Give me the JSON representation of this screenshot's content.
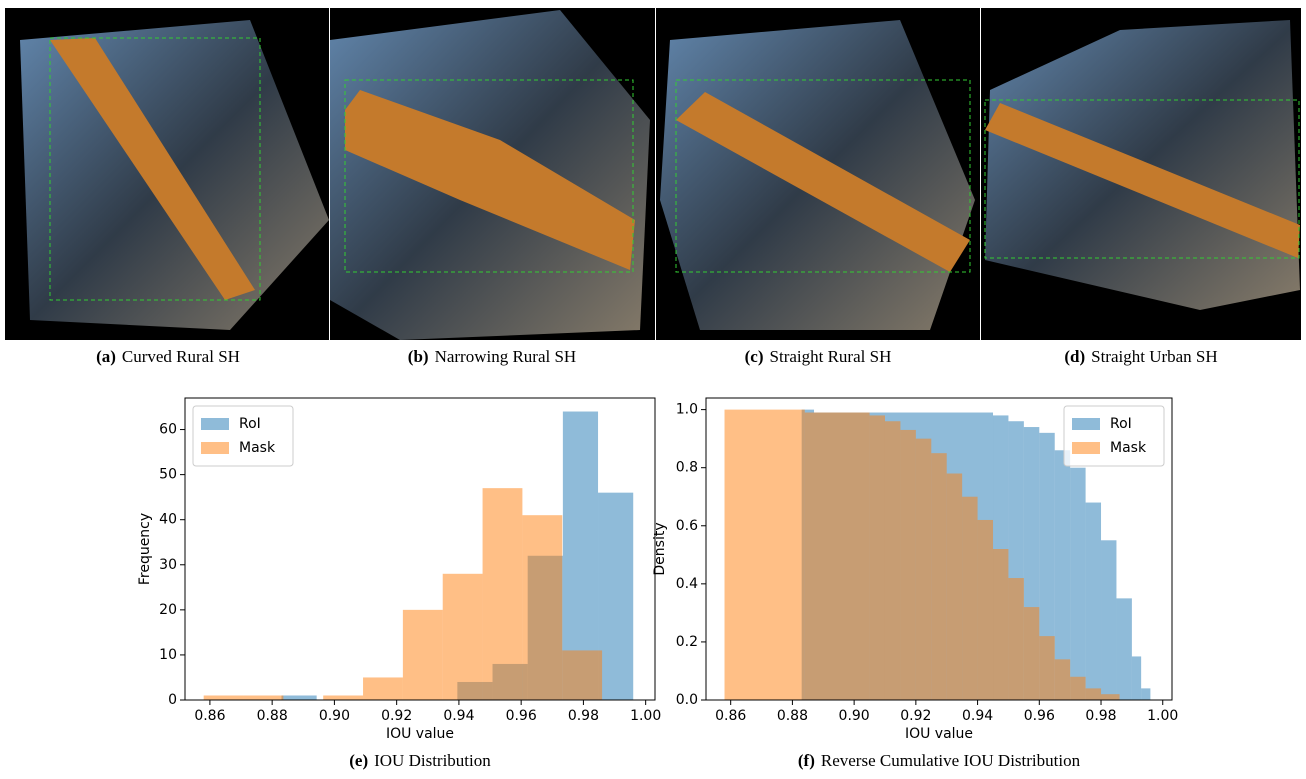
{
  "images": [
    {
      "label": "(a)",
      "caption": "Curved Rural SH"
    },
    {
      "label": "(b)",
      "caption": "Narrowing Rural SH"
    },
    {
      "label": "(c)",
      "caption": "Straight Rural SH"
    },
    {
      "label": "(d)",
      "caption": "Straight Urban SH"
    }
  ],
  "chart_data": [
    {
      "type": "histogram",
      "caption_label": "(e)",
      "caption": "IOU Distribution",
      "xlabel": "IOU value",
      "ylabel": "Frequency",
      "legend": "upper left",
      "alpha": 0.5,
      "xlim": [
        0.852,
        1.003
      ],
      "ylim": [
        0,
        67
      ],
      "xticks": [
        0.86,
        0.88,
        {
          "value": 0.9,
          "label": "0.90"
        },
        0.92,
        0.94,
        0.96,
        0.98,
        {
          "value": 1,
          "label": "1.00"
        }
      ],
      "yticks": [
        0,
        10,
        20,
        30,
        40,
        50,
        60
      ],
      "series": [
        {
          "name": "RoI",
          "color": "#1f77b4",
          "bins": [
            0.883,
            0.8943,
            0.9056,
            0.9169,
            0.9282,
            0.9395,
            0.9508,
            0.9621,
            0.9734,
            0.9847,
            0.996
          ],
          "values": [
            1,
            0,
            0,
            0,
            0,
            4,
            8,
            32,
            64,
            46
          ]
        },
        {
          "name": "Mask",
          "color": "#ff7f0e",
          "bins": [
            0.858,
            0.8708,
            0.8836,
            0.8964,
            0.9092,
            0.922,
            0.9348,
            0.9476,
            0.9604,
            0.9732,
            0.986
          ],
          "values": [
            1,
            1,
            0,
            1,
            5,
            20,
            28,
            47,
            41,
            11
          ]
        }
      ]
    },
    {
      "type": "histogram",
      "caption_label": "(f)",
      "caption": "Reverse Cumulative IOU Distribution",
      "xlabel": "IOU value",
      "ylabel": "Density",
      "legend": "upper right",
      "alpha": 0.5,
      "xlim": [
        0.852,
        1.003
      ],
      "ylim": [
        0,
        1.04
      ],
      "xticks": [
        0.86,
        0.88,
        {
          "value": 0.9,
          "label": "0.90"
        },
        0.92,
        0.94,
        0.96,
        0.98,
        {
          "value": 1,
          "label": "1.00"
        }
      ],
      "yticks": [
        {
          "value": 0,
          "label": "0.0"
        },
        0.2,
        0.4,
        0.6,
        0.8,
        {
          "value": 1,
          "label": "1.0"
        }
      ],
      "series": [
        {
          "name": "RoI",
          "color": "#1f77b4",
          "bins": [
            0.883,
            0.887,
            0.945,
            0.95,
            0.955,
            0.96,
            0.965,
            0.97,
            0.975,
            0.98,
            0.985,
            0.99,
            0.993,
            0.996
          ],
          "values": [
            1.0,
            0.99,
            0.98,
            0.96,
            0.94,
            0.92,
            0.86,
            0.8,
            0.68,
            0.55,
            0.35,
            0.15,
            0.04
          ]
        },
        {
          "name": "Mask",
          "color": "#ff7f0e",
          "bins": [
            0.858,
            0.884,
            0.905,
            0.91,
            0.915,
            0.92,
            0.925,
            0.93,
            0.935,
            0.94,
            0.945,
            0.95,
            0.955,
            0.96,
            0.965,
            0.97,
            0.975,
            0.98,
            0.986
          ],
          "values": [
            1.0,
            0.99,
            0.98,
            0.96,
            0.93,
            0.9,
            0.85,
            0.78,
            0.7,
            0.62,
            0.52,
            0.42,
            0.32,
            0.22,
            0.14,
            0.08,
            0.04,
            0.02
          ]
        }
      ]
    }
  ]
}
